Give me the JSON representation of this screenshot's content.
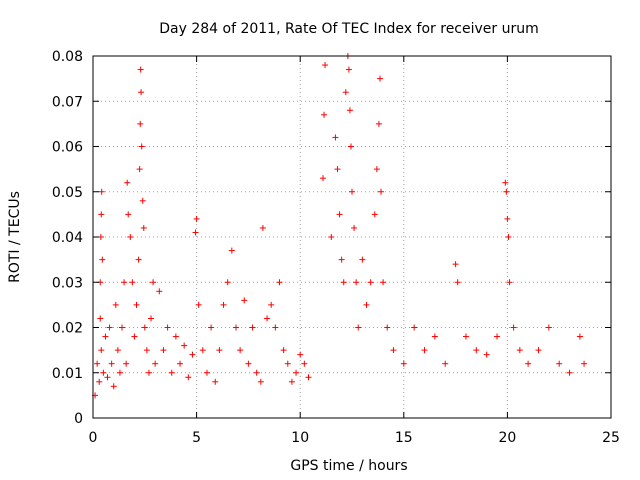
{
  "chart_data": {
    "type": "scatter",
    "title": "Day 284 of 2011, Rate Of TEC Index for receiver urum",
    "xlabel": "GPS time / hours",
    "ylabel": "ROTI / TECUs",
    "xlim": [
      0,
      25
    ],
    "ylim": [
      0,
      0.08
    ],
    "xticks": [
      0,
      5,
      10,
      15,
      20,
      25
    ],
    "yticks": [
      0,
      0.01,
      0.02,
      0.03,
      0.04,
      0.05,
      0.06,
      0.07,
      0.08
    ],
    "xtick_labels": [
      "0",
      "5",
      "10",
      "15",
      "20",
      "25"
    ],
    "ytick_labels": [
      "0",
      "0.01",
      "0.02",
      "0.03",
      "0.04",
      "0.05",
      "0.06",
      "0.07",
      "0.08"
    ],
    "grid": true,
    "marker": "+",
    "color": "#ff0000",
    "series": [
      {
        "points": [
          [
            0.1,
            0.005
          ],
          [
            0.2,
            0.012
          ],
          [
            0.3,
            0.008
          ],
          [
            0.4,
            0.015
          ],
          [
            0.35,
            0.022
          ],
          [
            0.35,
            0.03
          ],
          [
            0.38,
            0.04
          ],
          [
            0.4,
            0.045
          ],
          [
            0.42,
            0.05
          ],
          [
            0.45,
            0.035
          ],
          [
            0.5,
            0.01
          ],
          [
            0.6,
            0.018
          ],
          [
            0.7,
            0.009
          ],
          [
            0.8,
            0.02
          ],
          [
            0.9,
            0.012
          ],
          [
            1.0,
            0.007
          ],
          [
            1.1,
            0.025
          ],
          [
            1.2,
            0.015
          ],
          [
            1.3,
            0.01
          ],
          [
            1.4,
            0.02
          ],
          [
            1.5,
            0.03
          ],
          [
            1.6,
            0.012
          ],
          [
            1.65,
            0.052
          ],
          [
            1.7,
            0.045
          ],
          [
            1.8,
            0.04
          ],
          [
            1.9,
            0.03
          ],
          [
            2.0,
            0.018
          ],
          [
            2.1,
            0.025
          ],
          [
            2.2,
            0.035
          ],
          [
            2.25,
            0.055
          ],
          [
            2.28,
            0.065
          ],
          [
            2.3,
            0.077
          ],
          [
            2.32,
            0.072
          ],
          [
            2.35,
            0.06
          ],
          [
            2.4,
            0.048
          ],
          [
            2.45,
            0.042
          ],
          [
            2.5,
            0.02
          ],
          [
            2.6,
            0.015
          ],
          [
            2.7,
            0.01
          ],
          [
            2.8,
            0.022
          ],
          [
            2.9,
            0.03
          ],
          [
            3.0,
            0.012
          ],
          [
            3.2,
            0.028
          ],
          [
            3.4,
            0.015
          ],
          [
            3.6,
            0.02
          ],
          [
            3.8,
            0.01
          ],
          [
            4.0,
            0.018
          ],
          [
            4.2,
            0.012
          ],
          [
            4.4,
            0.016
          ],
          [
            4.6,
            0.009
          ],
          [
            4.8,
            0.014
          ],
          [
            4.95,
            0.041
          ],
          [
            5.0,
            0.044
          ],
          [
            5.1,
            0.025
          ],
          [
            5.3,
            0.015
          ],
          [
            5.5,
            0.01
          ],
          [
            5.7,
            0.02
          ],
          [
            5.9,
            0.008
          ],
          [
            6.1,
            0.015
          ],
          [
            6.3,
            0.025
          ],
          [
            6.5,
            0.03
          ],
          [
            6.7,
            0.037
          ],
          [
            6.9,
            0.02
          ],
          [
            7.1,
            0.015
          ],
          [
            7.3,
            0.026
          ],
          [
            7.5,
            0.012
          ],
          [
            7.7,
            0.02
          ],
          [
            7.9,
            0.01
          ],
          [
            8.1,
            0.008
          ],
          [
            8.2,
            0.042
          ],
          [
            8.4,
            0.022
          ],
          [
            8.6,
            0.025
          ],
          [
            8.8,
            0.02
          ],
          [
            9.0,
            0.03
          ],
          [
            9.2,
            0.015
          ],
          [
            9.4,
            0.012
          ],
          [
            9.6,
            0.008
          ],
          [
            9.8,
            0.01
          ],
          [
            10.0,
            0.014
          ],
          [
            10.2,
            0.012
          ],
          [
            10.4,
            0.009
          ],
          [
            11.1,
            0.053
          ],
          [
            11.15,
            0.067
          ],
          [
            11.2,
            0.078
          ],
          [
            11.5,
            0.04
          ],
          [
            11.7,
            0.062
          ],
          [
            11.8,
            0.055
          ],
          [
            11.9,
            0.045
          ],
          [
            12.0,
            0.035
          ],
          [
            12.1,
            0.03
          ],
          [
            12.2,
            0.072
          ],
          [
            12.3,
            0.08
          ],
          [
            12.35,
            0.077
          ],
          [
            12.4,
            0.068
          ],
          [
            12.45,
            0.06
          ],
          [
            12.5,
            0.05
          ],
          [
            12.6,
            0.042
          ],
          [
            12.7,
            0.03
          ],
          [
            12.8,
            0.02
          ],
          [
            13.0,
            0.035
          ],
          [
            13.2,
            0.025
          ],
          [
            13.4,
            0.03
          ],
          [
            13.6,
            0.045
          ],
          [
            13.7,
            0.055
          ],
          [
            13.8,
            0.065
          ],
          [
            13.85,
            0.075
          ],
          [
            13.9,
            0.05
          ],
          [
            14.0,
            0.03
          ],
          [
            14.2,
            0.02
          ],
          [
            14.5,
            0.015
          ],
          [
            15.0,
            0.012
          ],
          [
            15.5,
            0.02
          ],
          [
            16.0,
            0.015
          ],
          [
            16.5,
            0.018
          ],
          [
            17.0,
            0.012
          ],
          [
            17.5,
            0.034
          ],
          [
            17.6,
            0.03
          ],
          [
            18.0,
            0.018
          ],
          [
            18.5,
            0.015
          ],
          [
            19.0,
            0.014
          ],
          [
            19.5,
            0.018
          ],
          [
            19.9,
            0.052
          ],
          [
            19.95,
            0.05
          ],
          [
            20.0,
            0.044
          ],
          [
            20.05,
            0.04
          ],
          [
            20.1,
            0.03
          ],
          [
            20.3,
            0.02
          ],
          [
            20.6,
            0.015
          ],
          [
            21.0,
            0.012
          ],
          [
            21.5,
            0.015
          ],
          [
            22.0,
            0.02
          ],
          [
            22.5,
            0.012
          ],
          [
            23.0,
            0.01
          ],
          [
            23.5,
            0.018
          ],
          [
            23.7,
            0.012
          ]
        ]
      }
    ]
  }
}
